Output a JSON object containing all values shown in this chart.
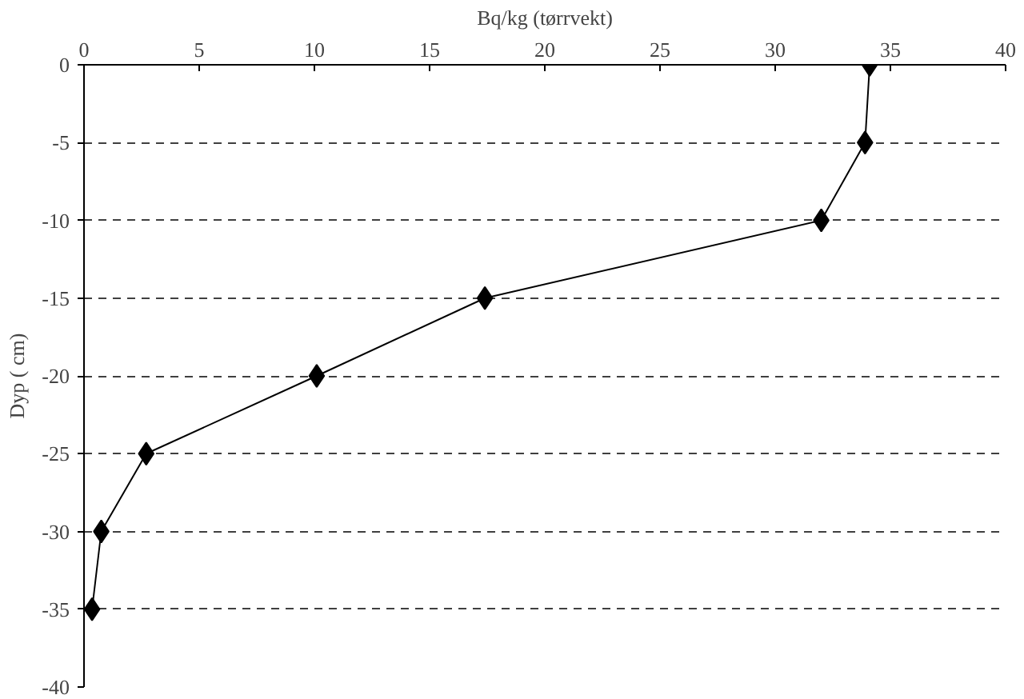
{
  "chart_data": {
    "type": "line",
    "xlabel": "Bq/kg (tørrvekt)",
    "ylabel": "Dyp ( cm)",
    "x": [
      34.1,
      33.9,
      32.0,
      17.4,
      10.1,
      2.7,
      0.75,
      0.35
    ],
    "series": [
      {
        "color": "#000000",
        "values": [
          0,
          -5,
          -10,
          -15,
          -20,
          -25,
          -30,
          -35
        ]
      }
    ],
    "xlim": [
      0,
      40
    ],
    "xticks": [
      0,
      5,
      10,
      15,
      20,
      25,
      30,
      35,
      40
    ],
    "ylim": [
      -40,
      0
    ],
    "yticks": [
      0,
      -5,
      -10,
      -15,
      -20,
      -25,
      -30,
      -35,
      -40
    ],
    "grid": "y",
    "marker": "diamond",
    "line_style": "solid"
  }
}
